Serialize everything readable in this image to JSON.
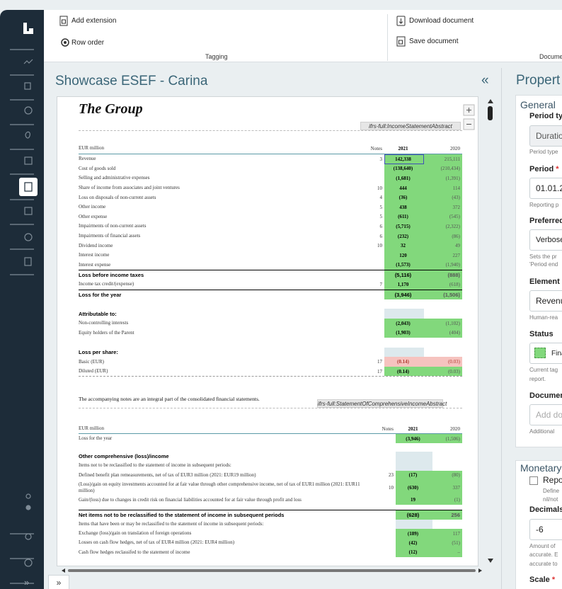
{
  "toolbar": {
    "add_extension": "Add extension",
    "row_order": "Row order",
    "tagging_group": "Tagging",
    "download_document": "Download document",
    "save_document": "Save document",
    "document_group": "Docume"
  },
  "panel": {
    "title": "Showcase ESEF - Carina",
    "collapse": "«",
    "expand": "»"
  },
  "sidebar": {
    "expand": "»"
  },
  "document": {
    "heading": "The Group",
    "tag_1": "ifrs-full:IncomeStatementAbstract",
    "table_1": {
      "header": {
        "label": "EUR million",
        "notes": "Notes",
        "current": "2021",
        "prior": "2020"
      },
      "rows": [
        {
          "label": "Revenue",
          "notes": "3",
          "current": "142,338",
          "prior": "215,111",
          "selected": true
        },
        {
          "label": "Cost of goods sold",
          "current": "(138,640)",
          "prior": "(210,434)"
        },
        {
          "label": "Selling and administrative expenses",
          "current": "(1,681)",
          "prior": "(1,391)"
        },
        {
          "label": "Share of income from associates and joint ventures",
          "notes": "10",
          "current": "444",
          "prior": "114"
        },
        {
          "label": "Loss on disposals of non-current assets",
          "notes": "4",
          "current": "(36)",
          "prior": "(43)"
        },
        {
          "label": "Other income",
          "notes": "5",
          "current": "438",
          "prior": "372"
        },
        {
          "label": "Other expense",
          "notes": "5",
          "current": "(611)",
          "prior": "(545)"
        },
        {
          "label": "Impairments of non-current assets",
          "notes": "6",
          "current": "(5,715)",
          "prior": "(2,322)"
        },
        {
          "label": "Impairments of financial assets",
          "notes": "6",
          "current": "(232)",
          "prior": "(86)"
        },
        {
          "label": "Dividend income",
          "notes": "10",
          "current": "32",
          "prior": "49"
        },
        {
          "label": "Interest income",
          "current": "120",
          "prior": "227"
        },
        {
          "label": "Interest expense",
          "current": "(1,573)",
          "prior": "(1,940)"
        },
        {
          "label": "Loss before income taxes",
          "current": "(5,116)",
          "prior": "(888)",
          "bold": true,
          "total": true
        },
        {
          "label": "Income tax credit/(expense)",
          "notes": "7",
          "current": "1,170",
          "prior": "(618)"
        },
        {
          "label": "Loss for the year",
          "current": "(3,946)",
          "prior": "(1,506)",
          "bold": true,
          "total": true
        },
        {
          "label": "Attributable to:",
          "bold": true,
          "space_before": true
        },
        {
          "label": "Non-controlling interests",
          "current": "(2,043)",
          "prior": "(1,102)"
        },
        {
          "label": "Equity holders of the Parent",
          "current": "(1,903)",
          "prior": "(404)"
        },
        {
          "label": "Loss per share:",
          "bold": true,
          "space_before": true
        },
        {
          "label": "Basic (EUR)",
          "notes": "17",
          "current": "(0.14)",
          "prior": "(0.03)",
          "status": "rejected"
        },
        {
          "label": "Diluted (EUR)",
          "notes": "17",
          "current": "(0.14)",
          "prior": "(0.03)"
        }
      ]
    },
    "note": "The accompanying notes are an integral part of the consolidated financial statements.",
    "tag_2": "ifrs-full:StatementOfComprehensiveIncomeAbstract",
    "table_2": {
      "header": {
        "label": "EUR million",
        "notes": "Notes",
        "current": "2021",
        "prior": "2020"
      },
      "rows": [
        {
          "label": "Loss for the year",
          "current": "(3,946)",
          "prior": "(1,506)"
        },
        {
          "label": "Other comprehensive (loss)/income",
          "bold": true,
          "space_before": true
        },
        {
          "label": "Items not to be reclassified to the statement of income in subsequent periods:"
        },
        {
          "label": "Defined benefit plan remeasurements, net of tax of EUR3 million (2021: EUR19 million)",
          "notes": "23",
          "current": "(17)",
          "prior": "(80)"
        },
        {
          "label": "(Loss)/gain on equity investments accounted for at fair value through other comprehensive income, net of tax of EUR1 million (2021: EUR11 million)",
          "notes": "10",
          "current": "(630)",
          "prior": "337"
        },
        {
          "label": "Gain/(loss) due to changes in credit risk on financial liabilities accounted for at fair value through profit and loss",
          "current": "19",
          "prior": "(1)"
        },
        {
          "label": "Net items not to be reclassified to the statement of income in subsequent periods",
          "current": "(628)",
          "prior": "256",
          "bold": true,
          "total": true
        },
        {
          "label": "Items that have been or may be reclassified to the statement of income in subsequent periods:"
        },
        {
          "label": "Exchange (loss)/gain on translation of foreign operations",
          "current": "(189)",
          "prior": "117"
        },
        {
          "label": "Losses on cash flow hedges, net of tax of EUR4 million (2021: EUR4 million)",
          "current": "(42)",
          "prior": "(51)"
        },
        {
          "label": "Cash flow hedges reclassifed to the statement of income",
          "current": "(12)",
          "prior": "–"
        }
      ]
    }
  },
  "properties": {
    "title": "Propert",
    "general": {
      "title": "General",
      "period_type_label": "Period typ",
      "period_type_value": "Duratio",
      "period_type_help": "Period type",
      "period_label": "Period",
      "required": "*",
      "period_value": "01.01.2",
      "period_help": "Reporting p",
      "preferred_label": "Preferred",
      "preferred_value": "Verbose",
      "preferred_help": [
        "Sets the pr",
        "'Period end"
      ],
      "element_label": "Element l",
      "element_value": "Revenu",
      "element_help": "Human-rea",
      "status_label": "Status",
      "status_value": "Fina",
      "status_help": [
        "Current tag",
        "report."
      ],
      "document_label": "Documen",
      "document_placeholder": "Add do",
      "document_help": "Additional"
    },
    "monetary": {
      "title": "Monetary",
      "checkbox_label": "Repo",
      "checkbox_help": [
        "Define",
        "nil/not"
      ],
      "decimals_label": "Decimals",
      "decimals_value": "-6",
      "decimals_help": [
        "Amount of",
        "accurate. E",
        "accurate to"
      ],
      "scale_label": "Scale",
      "required": "*"
    }
  }
}
